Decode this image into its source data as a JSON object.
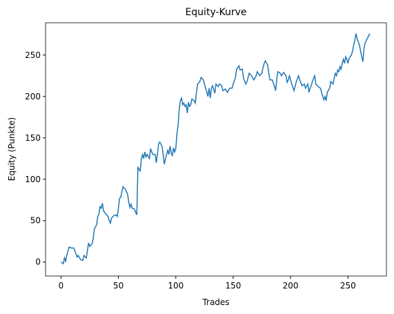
{
  "chart_data": {
    "type": "line",
    "title": "Equity-Kurve",
    "xlabel": "Trades",
    "ylabel": "Equity (Punkte)",
    "series": [
      {
        "name": "Equity",
        "color": "#1f77b4",
        "x": [
          0,
          2,
          3,
          4,
          5,
          7,
          9,
          11,
          13,
          14,
          15,
          17,
          19,
          20,
          22,
          23,
          24,
          25,
          27,
          28,
          29,
          31,
          32,
          33,
          34,
          35,
          36,
          37,
          39,
          41,
          42,
          43,
          44,
          46,
          48,
          49,
          50,
          51,
          52,
          53,
          54,
          56,
          58,
          59,
          60,
          61,
          62,
          64,
          65,
          66,
          67,
          68,
          69,
          70,
          71,
          72,
          73,
          74,
          75,
          77,
          78,
          79,
          80,
          82,
          83,
          84,
          85,
          86,
          88,
          89,
          90,
          91,
          93,
          94,
          95,
          96,
          97,
          98,
          99,
          100,
          101,
          102,
          103,
          104,
          105,
          106,
          107,
          108,
          109,
          110,
          111,
          112,
          113,
          114,
          116,
          117,
          118,
          119,
          121,
          122,
          124,
          125,
          127,
          128,
          129,
          130,
          131,
          132,
          134,
          135,
          137,
          138,
          140,
          141,
          143,
          145,
          147,
          149,
          150,
          152,
          153,
          155,
          156,
          158,
          159,
          161,
          162,
          164,
          166,
          168,
          170,
          171,
          173,
          175,
          176,
          177,
          178,
          180,
          181,
          182,
          184,
          186,
          187,
          188,
          189,
          191,
          192,
          194,
          196,
          197,
          198,
          199,
          201,
          203,
          205,
          207,
          208,
          210,
          212,
          213,
          215,
          216,
          217,
          218,
          219,
          221,
          222,
          224,
          226,
          227,
          228,
          229,
          230,
          231,
          232,
          234,
          235,
          237,
          238,
          239,
          240,
          241,
          242,
          243,
          244,
          245,
          246,
          247,
          248,
          249,
          250,
          251,
          253,
          254,
          255,
          256,
          257,
          258,
          260,
          261,
          262,
          263,
          264,
          265,
          269
        ],
        "values": [
          0,
          -2,
          5,
          1,
          8,
          18,
          17,
          17,
          10,
          6,
          8,
          3,
          2,
          8,
          5,
          14,
          23,
          19,
          22,
          28,
          40,
          45,
          55,
          58,
          67,
          65,
          71,
          62,
          58,
          55,
          50,
          47,
          53,
          56,
          57,
          55,
          65,
          77,
          78,
          85,
          91,
          88,
          82,
          72,
          66,
          70,
          65,
          64,
          60,
          57,
          115,
          112,
          110,
          125,
          130,
          125,
          133,
          127,
          130,
          125,
          137,
          133,
          130,
          130,
          120,
          130,
          143,
          145,
          140,
          130,
          118,
          125,
          135,
          130,
          140,
          132,
          128,
          138,
          133,
          137,
          155,
          165,
          185,
          195,
          198,
          190,
          192,
          188,
          190,
          180,
          193,
          188,
          190,
          197,
          195,
          192,
          205,
          215,
          218,
          223,
          220,
          215,
          205,
          200,
          210,
          198,
          210,
          213,
          204,
          215,
          212,
          215,
          213,
          207,
          209,
          205,
          210,
          210,
          215,
          223,
          233,
          237,
          232,
          233,
          222,
          215,
          218,
          228,
          225,
          220,
          225,
          230,
          225,
          228,
          235,
          240,
          243,
          238,
          228,
          220,
          220,
          212,
          207,
          222,
          230,
          228,
          225,
          229,
          225,
          217,
          220,
          225,
          215,
          207,
          218,
          225,
          220,
          213,
          215,
          210,
          215,
          205,
          210,
          213,
          218,
          225,
          215,
          212,
          210,
          205,
          200,
          196,
          200,
          195,
          205,
          210,
          218,
          215,
          222,
          228,
          225,
          232,
          230,
          236,
          233,
          240,
          245,
          240,
          248,
          245,
          240,
          246,
          250,
          255,
          262,
          268,
          276,
          270,
          262,
          255,
          248,
          242,
          258,
          265,
          276
        ]
      }
    ],
    "xlim": [
      -13.5,
      283.5
    ],
    "ylim": [
      -16.9,
      289
    ],
    "xticks": [
      0,
      50,
      100,
      150,
      200,
      250
    ],
    "yticks": [
      0,
      50,
      100,
      150,
      200,
      250
    ]
  }
}
